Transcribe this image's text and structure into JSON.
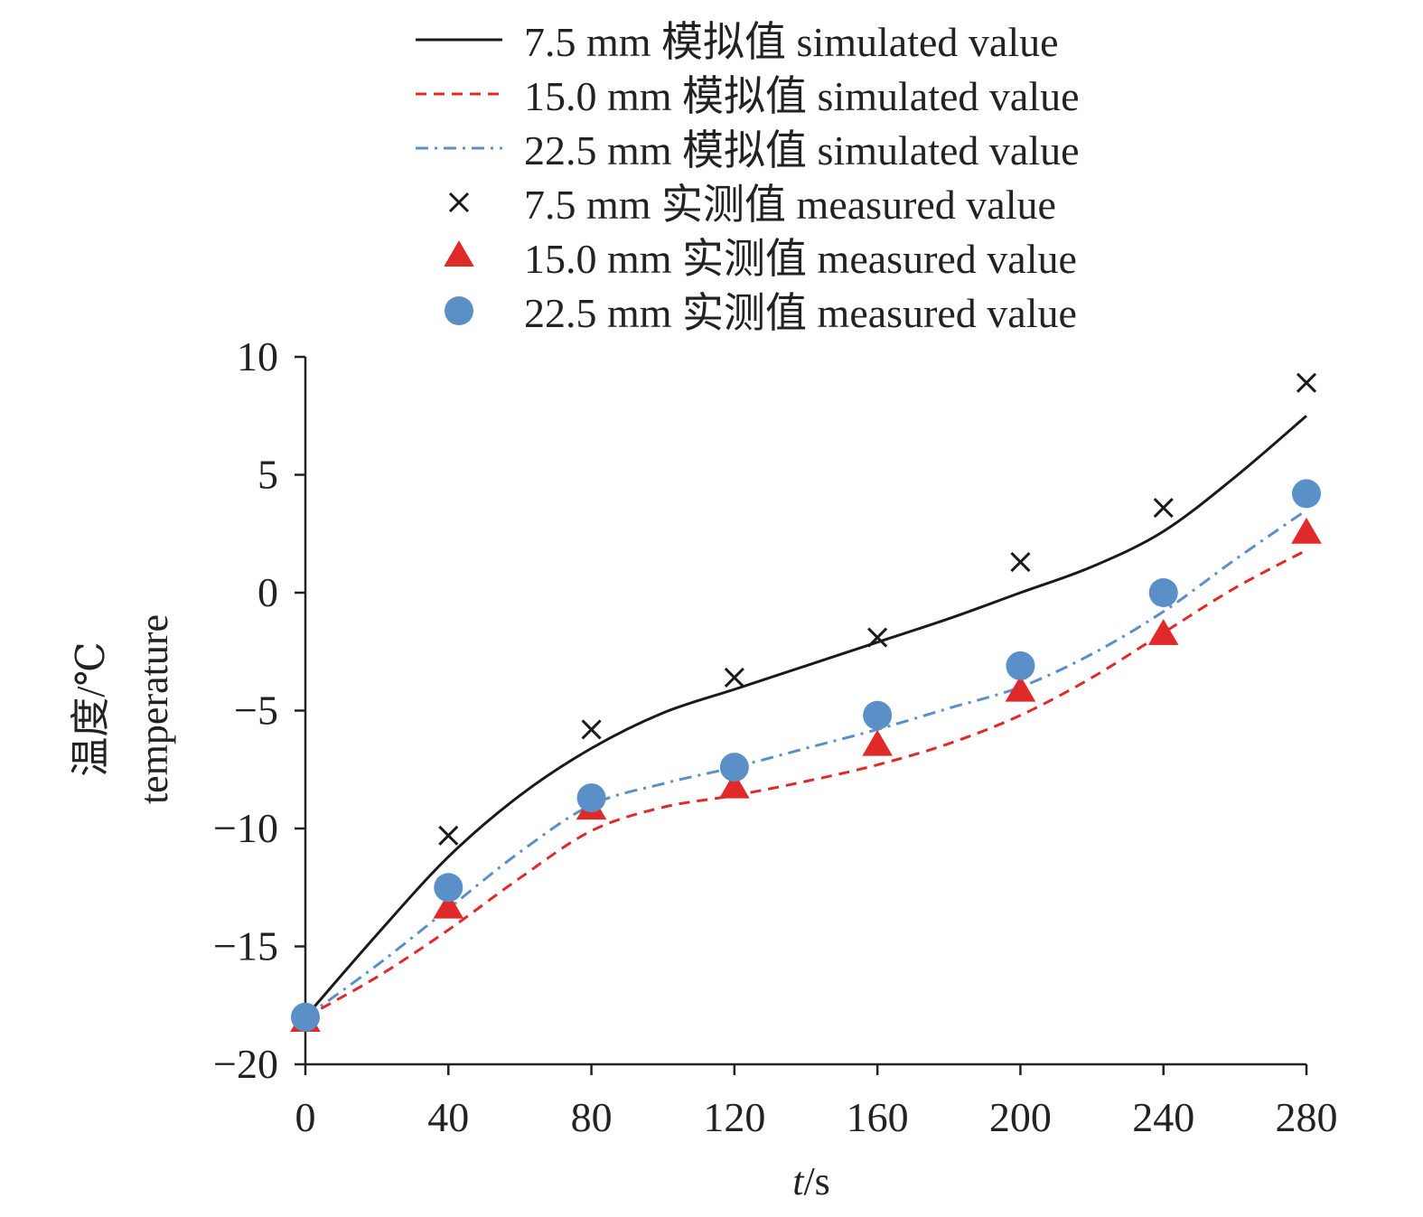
{
  "chart_data": {
    "type": "line",
    "x_axis": {
      "label_italic": "t",
      "label_rest": "/s",
      "ticks": [
        0,
        40,
        80,
        120,
        160,
        200,
        240,
        280
      ],
      "range": [
        0,
        280
      ]
    },
    "y_axis": {
      "label_cn": "温度/℃",
      "label_en": "temperature",
      "ticks": [
        10,
        5,
        0,
        -5,
        -10,
        -15,
        -20
      ],
      "tick_labels": [
        "10",
        "5",
        "0",
        "−5",
        "−10",
        "−15",
        "−20"
      ],
      "range": [
        -20,
        10
      ]
    },
    "grid": false,
    "legend_position": "top",
    "series": [
      {
        "name": "7.5 mm 模拟值 simulated value",
        "kind": "simulated",
        "style": "solid",
        "color": "#1a1a1a",
        "x": [
          0,
          20,
          40,
          60,
          80,
          100,
          120,
          140,
          160,
          180,
          200,
          220,
          240,
          260,
          280
        ],
        "y": [
          -18.0,
          -14.5,
          -11.2,
          -8.6,
          -6.6,
          -5.1,
          -4.1,
          -3.1,
          -2.1,
          -1.1,
          0.0,
          1.1,
          2.6,
          4.9,
          7.5
        ]
      },
      {
        "name": "15.0 mm 模拟值 simulated value",
        "kind": "simulated",
        "style": "dashed",
        "color": "#e02a2a",
        "x": [
          0,
          20,
          40,
          60,
          80,
          100,
          120,
          140,
          160,
          180,
          200,
          220,
          240,
          260,
          280
        ],
        "y": [
          -18.0,
          -16.3,
          -14.3,
          -12.1,
          -10.1,
          -9.1,
          -8.6,
          -8.0,
          -7.3,
          -6.4,
          -5.2,
          -3.6,
          -1.7,
          0.2,
          1.8
        ]
      },
      {
        "name": "22.5 mm 模拟值 simulated value",
        "kind": "simulated",
        "style": "dashdot",
        "color": "#5b8fc7",
        "x": [
          0,
          20,
          40,
          60,
          80,
          100,
          120,
          140,
          160,
          180,
          200,
          220,
          240,
          260,
          280
        ],
        "y": [
          -18.0,
          -15.8,
          -13.4,
          -11.0,
          -9.0,
          -8.1,
          -7.4,
          -6.6,
          -5.8,
          -4.9,
          -4.0,
          -2.6,
          -0.8,
          1.4,
          3.5
        ]
      },
      {
        "name": "7.5 mm 实测值 measured value",
        "kind": "measured",
        "marker": "x",
        "color": "#1a1a1a",
        "x": [
          0,
          40,
          80,
          120,
          160,
          200,
          240,
          280
        ],
        "y": [
          -18.0,
          -10.3,
          -5.8,
          -3.6,
          -1.9,
          1.3,
          3.6,
          8.9
        ]
      },
      {
        "name": "15.0 mm 实测值 measured value",
        "kind": "measured",
        "marker": "triangle",
        "color": "#e02a2a",
        "x": [
          0,
          40,
          80,
          120,
          160,
          200,
          240,
          280
        ],
        "y": [
          -18.2,
          -13.4,
          -9.2,
          -8.3,
          -6.5,
          -4.2,
          -1.8,
          2.5
        ]
      },
      {
        "name": "22.5 mm 实测值 measured value",
        "kind": "measured",
        "marker": "circle",
        "color": "#5b8fc7",
        "x": [
          0,
          40,
          80,
          120,
          160,
          200,
          240,
          280
        ],
        "y": [
          -18.0,
          -12.5,
          -8.7,
          -7.4,
          -5.2,
          -3.1,
          0.0,
          4.2
        ]
      }
    ]
  }
}
